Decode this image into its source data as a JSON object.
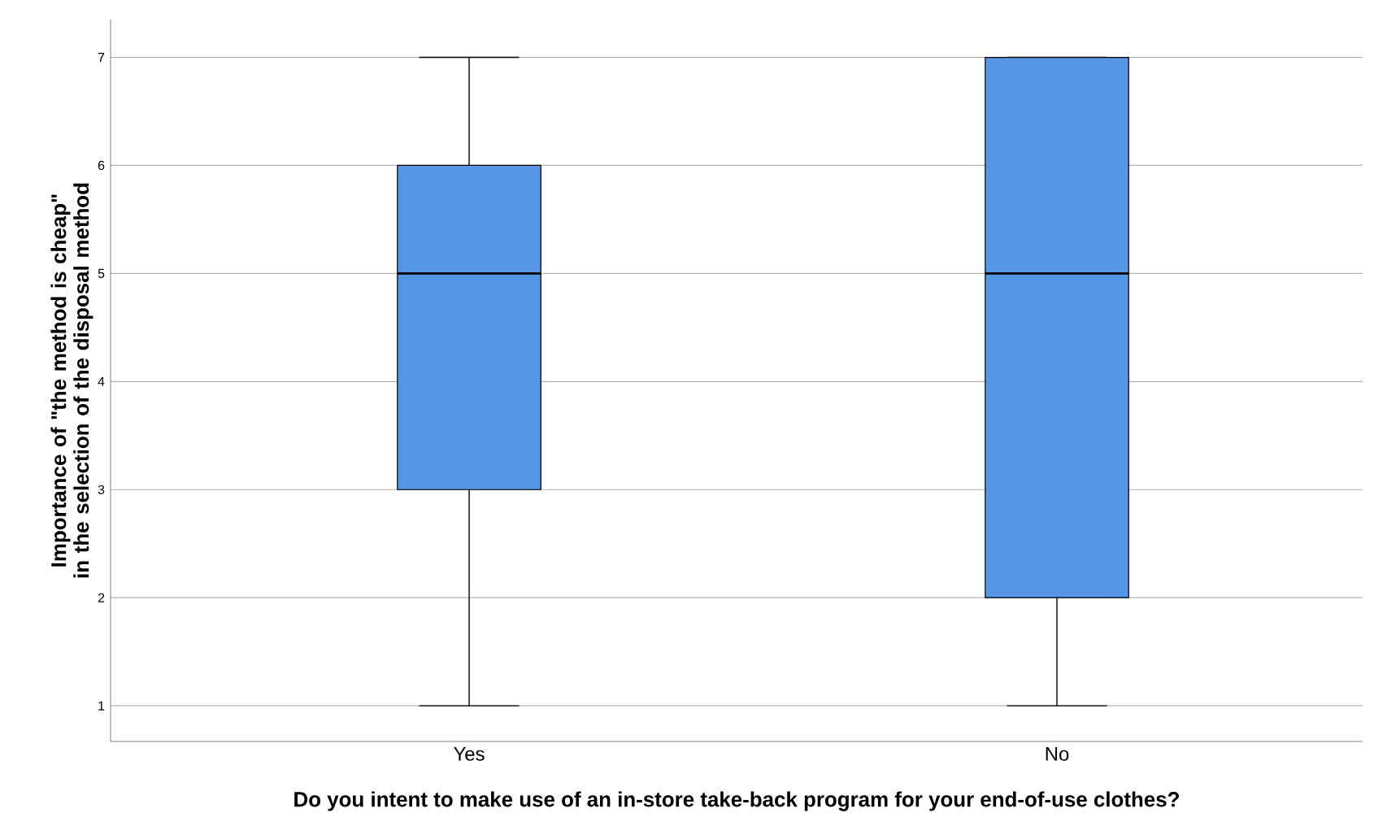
{
  "chart_data": {
    "type": "box",
    "xlabel": "Do you intent to make use of an in-store take-back program for your end-of-use clothes?",
    "ylabel": "Importance of \"the method is cheap\" in the selection of the disposal method",
    "categories": [
      "Yes",
      "No"
    ],
    "boxes": [
      {
        "low": 1,
        "q1": 3,
        "median": 5,
        "q3": 6,
        "high": 7
      },
      {
        "low": 1,
        "q1": 2,
        "median": 5,
        "q3": 7,
        "high": 7
      }
    ],
    "color": "#5596e6",
    "ylim": [
      0.67,
      7.35
    ],
    "yticks": [
      1,
      2,
      3,
      4,
      5,
      6,
      7
    ],
    "grid": "y"
  }
}
